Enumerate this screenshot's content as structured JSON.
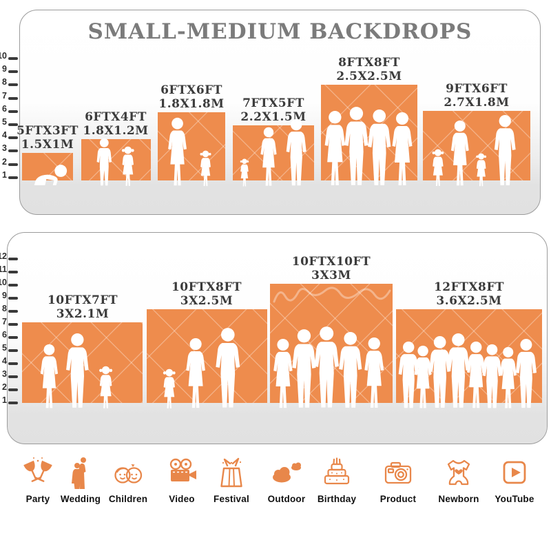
{
  "title": "SMALL-MEDIUM BACKDROPS",
  "colors": {
    "backdrop_orange": "#EE8C4D",
    "icon_orange": "#E8874A",
    "title_gray": "#7B7B7B",
    "label_dark": "#3B3B3B",
    "floor_gray": "#E2E2E2"
  },
  "panel_top": {
    "scale_ticks": [
      1,
      2,
      3,
      4,
      5,
      6,
      7,
      8,
      9,
      10
    ],
    "items": [
      {
        "size_ft": "5FTX3FT",
        "size_m": "1.5X1M",
        "figures": [
          "crawling-baby"
        ]
      },
      {
        "size_ft": "6FTX4FT",
        "size_m": "1.8X1.2M",
        "figures": [
          "boy",
          "girl"
        ]
      },
      {
        "size_ft": "6FTX6FT",
        "size_m": "1.8X1.8M",
        "figures": [
          "woman-holding-baby",
          "girl"
        ]
      },
      {
        "size_ft": "7FTX5FT",
        "size_m": "2.2X1.5M",
        "figures": [
          "toddler-girl",
          "woman",
          "man"
        ]
      },
      {
        "size_ft": "8FTX8FT",
        "size_m": "2.5X2.5M",
        "figures": [
          "woman",
          "man",
          "man",
          "woman"
        ]
      },
      {
        "size_ft": "9FTX6FT",
        "size_m": "2.7X1.8M",
        "figures": [
          "girl",
          "woman",
          "girl",
          "man"
        ]
      }
    ]
  },
  "panel_bottom": {
    "scale_ticks": [
      1,
      2,
      3,
      4,
      5,
      6,
      7,
      8,
      9,
      10,
      11,
      12
    ],
    "items": [
      {
        "size_ft": "10FTX7FT",
        "size_m": "3X2.1M",
        "figures": [
          "woman",
          "man",
          "girl"
        ]
      },
      {
        "size_ft": "10FTX8FT",
        "size_m": "3X2.5M",
        "figures": [
          "girl",
          "woman",
          "man"
        ]
      },
      {
        "size_ft": "10FTX10FT",
        "size_m": "3X3M",
        "figures": [
          "woman",
          "man",
          "man",
          "man",
          "woman"
        ]
      },
      {
        "size_ft": "12FTX8FT",
        "size_m": "3.6X2.5M",
        "figures": [
          "man",
          "woman",
          "man",
          "man",
          "woman",
          "man",
          "woman",
          "man"
        ]
      }
    ]
  },
  "categories": [
    {
      "label": "Party",
      "icon": "party-icon"
    },
    {
      "label": "Wedding",
      "icon": "wedding-icon"
    },
    {
      "label": "Children",
      "icon": "children-icon"
    },
    {
      "label": "Video",
      "icon": "video-icon"
    },
    {
      "label": "Festival",
      "icon": "festival-icon"
    },
    {
      "label": "Outdoor",
      "icon": "outdoor-icon"
    },
    {
      "label": "Birthday",
      "icon": "birthday-icon"
    },
    {
      "label": "Product",
      "icon": "product-icon"
    },
    {
      "label": "Newborn",
      "icon": "newborn-icon"
    },
    {
      "label": "YouTube",
      "icon": "youtube-icon"
    }
  ]
}
